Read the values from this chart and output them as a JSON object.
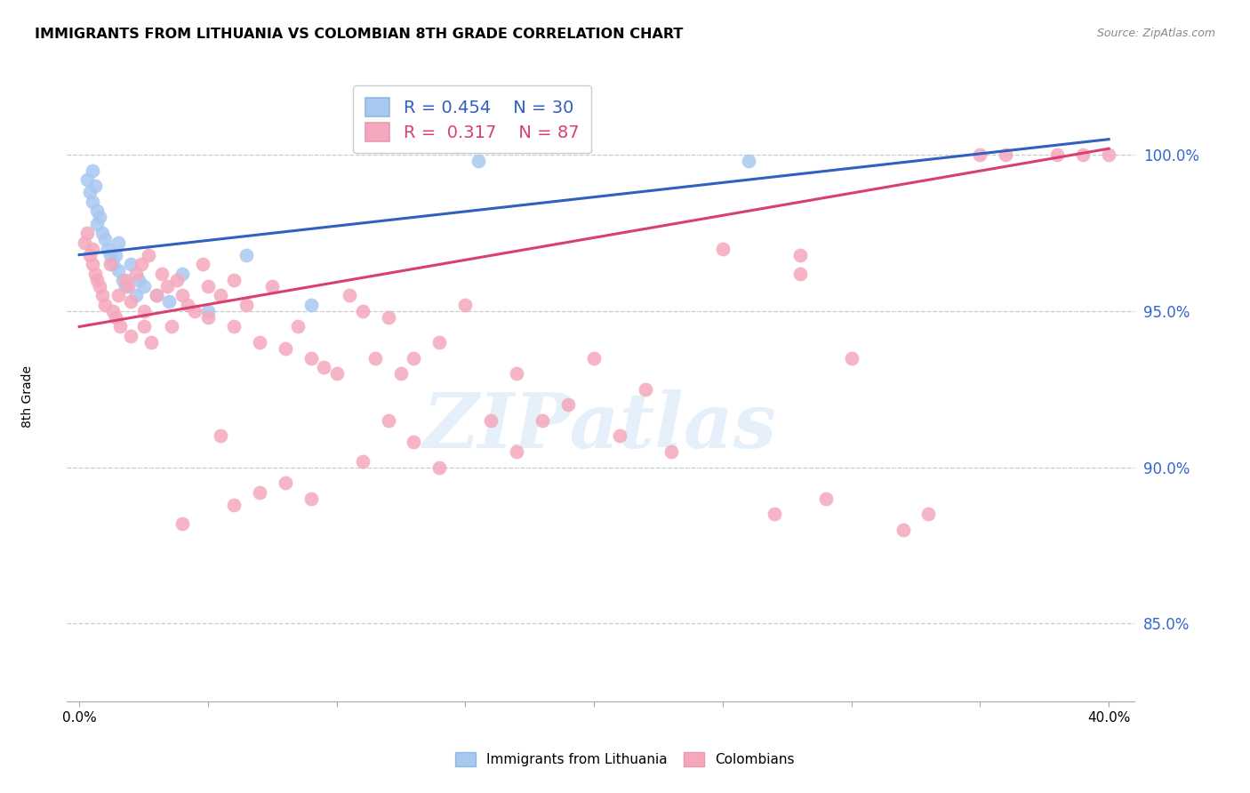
{
  "title": "IMMIGRANTS FROM LITHUANIA VS COLOMBIAN 8TH GRADE CORRELATION CHART",
  "source": "Source: ZipAtlas.com",
  "ylabel": "8th Grade",
  "y_ticks": [
    85.0,
    90.0,
    95.0,
    100.0
  ],
  "y_tick_labels": [
    "85.0%",
    "90.0%",
    "95.0%",
    "100.0%"
  ],
  "x_ticks": [
    0.0,
    0.05,
    0.1,
    0.15,
    0.2,
    0.25,
    0.3,
    0.35,
    0.4
  ],
  "x_tick_labels_visible": [
    "0.0%",
    "",
    "",
    "",
    "",
    "",
    "",
    "",
    "40.0%"
  ],
  "xlim": [
    -0.005,
    0.41
  ],
  "ylim": [
    82.5,
    102.5
  ],
  "legend_labels": [
    "Immigrants from Lithuania",
    "Colombians"
  ],
  "legend_R_blue": "0.454",
  "legend_N_blue": "30",
  "legend_R_pink": "0.317",
  "legend_N_pink": "87",
  "blue_color": "#A8C8F0",
  "pink_color": "#F5A8BC",
  "blue_line_color": "#3060C0",
  "pink_line_color": "#D84070",
  "watermark_text": "ZIPatlas",
  "blue_points_x": [
    0.003,
    0.004,
    0.005,
    0.005,
    0.006,
    0.007,
    0.007,
    0.008,
    0.009,
    0.01,
    0.011,
    0.012,
    0.013,
    0.014,
    0.015,
    0.015,
    0.017,
    0.018,
    0.02,
    0.022,
    0.023,
    0.025,
    0.03,
    0.035,
    0.04,
    0.05,
    0.065,
    0.09,
    0.155,
    0.26
  ],
  "blue_points_y": [
    99.2,
    98.8,
    99.5,
    98.5,
    99.0,
    98.2,
    97.8,
    98.0,
    97.5,
    97.3,
    97.0,
    96.8,
    96.5,
    96.8,
    97.2,
    96.3,
    96.0,
    95.8,
    96.5,
    95.5,
    96.0,
    95.8,
    95.5,
    95.3,
    96.2,
    95.0,
    96.8,
    95.2,
    99.8,
    99.8
  ],
  "pink_points_x": [
    0.002,
    0.003,
    0.004,
    0.005,
    0.005,
    0.006,
    0.007,
    0.008,
    0.009,
    0.01,
    0.012,
    0.013,
    0.014,
    0.015,
    0.016,
    0.018,
    0.019,
    0.02,
    0.02,
    0.022,
    0.024,
    0.025,
    0.027,
    0.028,
    0.03,
    0.032,
    0.034,
    0.036,
    0.038,
    0.04,
    0.042,
    0.045,
    0.048,
    0.05,
    0.05,
    0.055,
    0.06,
    0.06,
    0.065,
    0.07,
    0.075,
    0.08,
    0.085,
    0.09,
    0.095,
    0.1,
    0.105,
    0.11,
    0.115,
    0.12,
    0.125,
    0.13,
    0.14,
    0.15,
    0.16,
    0.17,
    0.18,
    0.19,
    0.2,
    0.21,
    0.22,
    0.23,
    0.25,
    0.27,
    0.28,
    0.29,
    0.3,
    0.32,
    0.35,
    0.36,
    0.38,
    0.39,
    0.4,
    0.28,
    0.33,
    0.17,
    0.13,
    0.08,
    0.07,
    0.09,
    0.11,
    0.06,
    0.12,
    0.14,
    0.055,
    0.04,
    0.025
  ],
  "pink_points_y": [
    97.2,
    97.5,
    96.8,
    97.0,
    96.5,
    96.2,
    96.0,
    95.8,
    95.5,
    95.2,
    96.5,
    95.0,
    94.8,
    95.5,
    94.5,
    96.0,
    95.8,
    95.3,
    94.2,
    96.2,
    96.5,
    95.0,
    96.8,
    94.0,
    95.5,
    96.2,
    95.8,
    94.5,
    96.0,
    95.5,
    95.2,
    95.0,
    96.5,
    95.8,
    94.8,
    95.5,
    94.5,
    96.0,
    95.2,
    94.0,
    95.8,
    93.8,
    94.5,
    93.5,
    93.2,
    93.0,
    95.5,
    95.0,
    93.5,
    94.8,
    93.0,
    93.5,
    94.0,
    95.2,
    91.5,
    93.0,
    91.5,
    92.0,
    93.5,
    91.0,
    92.5,
    90.5,
    97.0,
    88.5,
    96.2,
    89.0,
    93.5,
    88.0,
    100.0,
    100.0,
    100.0,
    100.0,
    100.0,
    96.8,
    88.5,
    90.5,
    90.8,
    89.5,
    89.2,
    89.0,
    90.2,
    88.8,
    91.5,
    90.0,
    91.0,
    88.2,
    94.5
  ],
  "blue_line_x": [
    0.0,
    0.4
  ],
  "blue_line_y": [
    96.8,
    100.5
  ],
  "pink_line_x": [
    0.0,
    0.4
  ],
  "pink_line_y": [
    94.5,
    100.2
  ]
}
